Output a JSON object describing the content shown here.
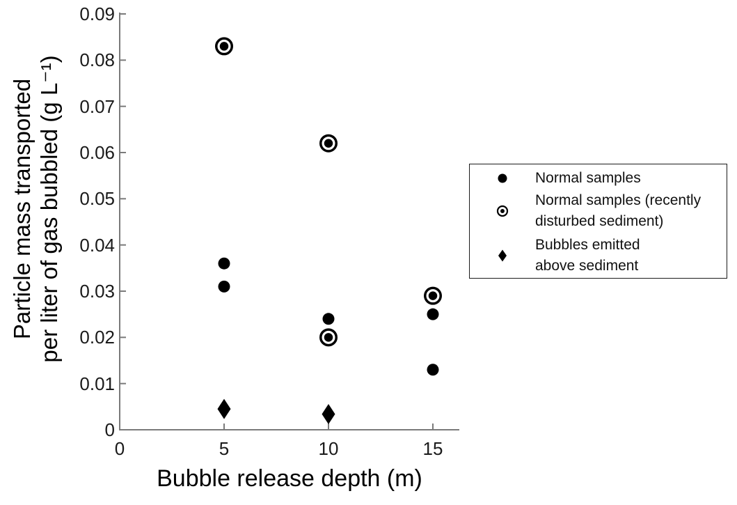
{
  "chart_data": {
    "type": "scatter",
    "title": "",
    "xlabel": "Bubble release depth (m)",
    "ylabel_line1": "Particle mass transported",
    "ylabel_line2": "per liter of gas bubbled (g L⁻¹)",
    "xlim": [
      0,
      16.3
    ],
    "ylim": [
      0,
      0.09
    ],
    "x_ticks": [
      0,
      5,
      10,
      15
    ],
    "x_tick_labels": [
      "0",
      "5",
      "10",
      "15"
    ],
    "y_ticks": [
      0,
      0.01,
      0.02,
      0.03,
      0.04,
      0.05,
      0.06,
      0.07,
      0.08,
      0.09
    ],
    "y_tick_labels": [
      "0",
      "0.01",
      "0.02",
      "0.03",
      "0.04",
      "0.05",
      "0.06",
      "0.07",
      "0.08",
      "0.09"
    ],
    "grid": false,
    "legend_position": "outside-right",
    "axis_color": "#7a7a7a",
    "tick_label_color": "#1a1a1a",
    "marker_color": "#000000",
    "series": [
      {
        "name": "normal-samples",
        "label": "Normal samples",
        "marker": "filled-circle",
        "points": [
          [
            5,
            0.036
          ],
          [
            5,
            0.031
          ],
          [
            10,
            0.024
          ],
          [
            15,
            0.025
          ],
          [
            15,
            0.013
          ]
        ]
      },
      {
        "name": "normal-samples-disturbed",
        "label": "Normal samples (recently\ndisturbed sediment)",
        "marker": "ringed-circle",
        "points": [
          [
            5,
            0.083
          ],
          [
            10,
            0.062
          ],
          [
            10,
            0.02
          ],
          [
            15,
            0.029
          ]
        ]
      },
      {
        "name": "bubbles-above-sediment",
        "label": "Bubbles emitted\nabove sediment",
        "marker": "filled-diamond",
        "points": [
          [
            5,
            0.0045
          ],
          [
            10,
            0.0034
          ]
        ]
      }
    ]
  }
}
